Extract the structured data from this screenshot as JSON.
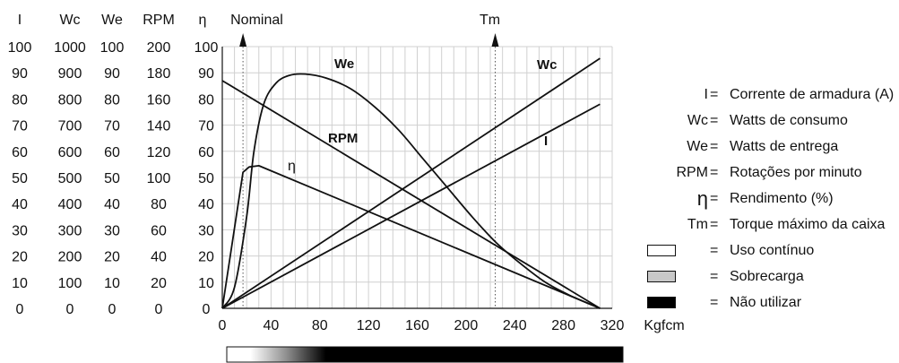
{
  "chart_data": {
    "type": "line",
    "scale_columns": [
      {
        "header": "I",
        "ticks": [
          "100",
          "90",
          "80",
          "70",
          "60",
          "50",
          "40",
          "30",
          "20",
          "10",
          "0"
        ]
      },
      {
        "header": "Wc",
        "ticks": [
          "1000",
          "900",
          "800",
          "700",
          "600",
          "500",
          "400",
          "300",
          "200",
          "100",
          "0"
        ]
      },
      {
        "header": "We",
        "ticks": [
          "100",
          "90",
          "80",
          "70",
          "60",
          "50",
          "40",
          "30",
          "20",
          "10",
          "0"
        ]
      },
      {
        "header": "RPM",
        "ticks": [
          "200",
          "180",
          "160",
          "140",
          "120",
          "100",
          "80",
          "60",
          "40",
          "20",
          "0"
        ]
      },
      {
        "header": "η",
        "ticks": [
          "100",
          "90",
          "80",
          "70",
          "60",
          "50",
          "40",
          "30",
          "20",
          "10",
          "0"
        ]
      }
    ],
    "xlabel": "Kgfcm",
    "xlim": [
      0,
      320
    ],
    "ylim": [
      0,
      100
    ],
    "x_ticks": [
      "0",
      "40",
      "80",
      "120",
      "160",
      "200",
      "240",
      "280",
      "320"
    ],
    "grid": true,
    "markers": [
      {
        "label": "Nominal",
        "x": 17
      },
      {
        "label": "Tm",
        "x": 224
      }
    ],
    "series": [
      {
        "name": "We",
        "points": [
          [
            0,
            0
          ],
          [
            10,
            8
          ],
          [
            20,
            35
          ],
          [
            26,
            60
          ],
          [
            34,
            78
          ],
          [
            44,
            86
          ],
          [
            55,
            89
          ],
          [
            68,
            89.5
          ],
          [
            85,
            88
          ],
          [
            105,
            84
          ],
          [
            125,
            77
          ],
          [
            145,
            68
          ],
          [
            165,
            57
          ],
          [
            185,
            46
          ],
          [
            205,
            35
          ],
          [
            225,
            25
          ],
          [
            245,
            17
          ],
          [
            265,
            10
          ],
          [
            285,
            5
          ],
          [
            310,
            0
          ]
        ]
      },
      {
        "name": "Wc",
        "points": [
          [
            0,
            0
          ],
          [
            310,
            95.5
          ]
        ]
      },
      {
        "name": "I",
        "points": [
          [
            0,
            0
          ],
          [
            310,
            78
          ]
        ]
      },
      {
        "name": "RPM",
        "points": [
          [
            0,
            87
          ],
          [
            310,
            0
          ]
        ]
      },
      {
        "name": "η",
        "points": [
          [
            0,
            0
          ],
          [
            17,
            52
          ],
          [
            22,
            54
          ],
          [
            30,
            54.5
          ],
          [
            310,
            0
          ]
        ]
      }
    ]
  },
  "legend": [
    {
      "key": "I",
      "desc": "Corrente de armadura (A)"
    },
    {
      "key": "Wc",
      "desc": "Watts de consumo"
    },
    {
      "key": "We",
      "desc": "Watts de entrega"
    },
    {
      "key": "RPM",
      "desc": "Rotações por minuto"
    },
    {
      "key": "η",
      "desc": "Rendimento (%)"
    },
    {
      "key": "Tm",
      "desc": "Torque máximo da caixa"
    },
    {
      "swatch_color": "#ffffff",
      "desc": "Uso contínuo"
    },
    {
      "swatch_color": "#c8c8c8",
      "desc": "Sobrecarga"
    },
    {
      "swatch_color": "#000000",
      "desc": "Não utilizar"
    }
  ],
  "equals_sign": "=",
  "usage_bar": {
    "stops": [
      {
        "at": 0.0,
        "color": "#ffffff"
      },
      {
        "at": 0.06,
        "color": "#ffffff"
      },
      {
        "at": 0.15,
        "color": "#909090"
      },
      {
        "at": 0.25,
        "color": "#000000"
      },
      {
        "at": 1.0,
        "color": "#000000"
      }
    ]
  }
}
